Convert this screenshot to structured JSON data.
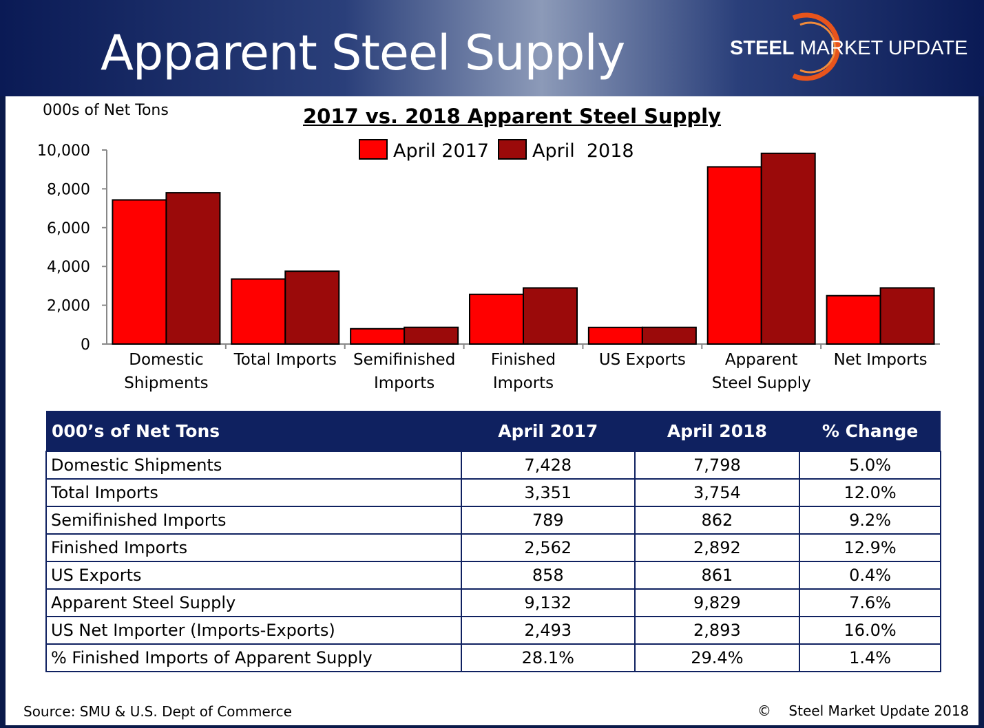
{
  "header": {
    "title": "Apparent Steel Supply",
    "logo_bold": "STEEL",
    "logo_rest": " MARKET UPDATE"
  },
  "chart_data": {
    "type": "bar",
    "title": "2017 vs. 2018 Apparent Steel Supply",
    "ylabel": "000s of Net Tons",
    "xlabel": "",
    "ylim": [
      0,
      10000
    ],
    "yticks": [
      "10,000",
      "8,000",
      "6,000",
      "4,000",
      "2,000",
      "0"
    ],
    "ytick_values": [
      10000,
      8000,
      6000,
      4000,
      2000,
      0
    ],
    "categories": [
      [
        "Domestic",
        "Shipments"
      ],
      [
        "Total Imports"
      ],
      [
        "Semifinished",
        "Imports"
      ],
      [
        "Finished",
        "Imports"
      ],
      [
        "US Exports"
      ],
      [
        "Apparent",
        "Steel Supply"
      ],
      [
        "Net Imports"
      ]
    ],
    "series": [
      {
        "name": "April 2017",
        "color": "#ff0000",
        "values": [
          7428,
          3351,
          789,
          2562,
          858,
          9132,
          2493
        ]
      },
      {
        "name": "April  2018",
        "color": "#9b0a0a",
        "values": [
          7798,
          3754,
          862,
          2892,
          861,
          9829,
          2893
        ]
      }
    ],
    "legend_position": "top-center",
    "grid": false
  },
  "table": {
    "headers": [
      "000’s of Net Tons",
      "April 2017",
      "April 2018",
      "% Change"
    ],
    "rows": [
      [
        "Domestic Shipments",
        "7,428",
        "7,798",
        "5.0%"
      ],
      [
        "Total Imports",
        "3,351",
        "3,754",
        "12.0%"
      ],
      [
        "Semifinished Imports",
        "789",
        "862",
        "9.2%"
      ],
      [
        "Finished Imports",
        "2,562",
        "2,892",
        "12.9%"
      ],
      [
        "US Exports",
        "858",
        "861",
        "0.4%"
      ],
      [
        "Apparent Steel Supply",
        "9,132",
        "9,829",
        "7.6%"
      ],
      [
        "US Net Importer (Imports-Exports)",
        "2,493",
        "2,893",
        "16.0%"
      ],
      [
        "% Finished Imports of Apparent Supply",
        "28.1%",
        "29.4%",
        "1.4%"
      ]
    ]
  },
  "footer": {
    "source": "Source:  SMU & U.S. Dept of Commerce",
    "copyright": "©    Steel Market Update 2018"
  },
  "colors": {
    "banner_dark": "#0a1a55",
    "table_header": "#0f2160",
    "logo_arc": "#e8541c"
  }
}
